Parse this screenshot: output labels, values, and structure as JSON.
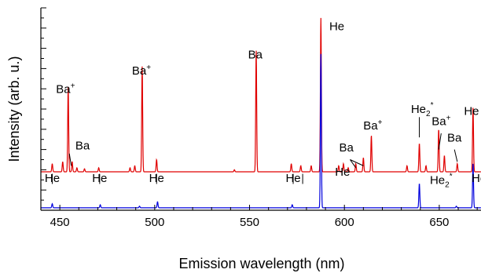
{
  "chart_data": {
    "type": "line",
    "xlabel": "Emission wavelength (nm)",
    "ylabel": "Intensity (arb. u.)",
    "xlim": [
      440,
      672
    ],
    "ylim": [
      0,
      1.0
    ],
    "x_ticks": [
      450,
      500,
      550,
      600,
      650
    ],
    "y_ticks": "unlabeled",
    "grid": false,
    "series": [
      {
        "color": "#e00000",
        "baseline": 0.19,
        "peaks": [
          {
            "x": 446,
            "h": 0.04
          },
          {
            "x": 451.5,
            "h": 0.05
          },
          {
            "x": 454.4,
            "h": 0.42
          },
          {
            "x": 456.5,
            "h": 0.05
          },
          {
            "x": 459,
            "h": 0.02
          },
          {
            "x": 463,
            "h": 0.015
          },
          {
            "x": 470.5,
            "h": 0.02
          },
          {
            "x": 487,
            "h": 0.02
          },
          {
            "x": 489.5,
            "h": 0.03
          },
          {
            "x": 493.4,
            "h": 0.52
          },
          {
            "x": 501,
            "h": 0.06
          },
          {
            "x": 542,
            "h": 0.01
          },
          {
            "x": 553.5,
            "h": 0.6
          },
          {
            "x": 572,
            "h": 0.04
          },
          {
            "x": 577,
            "h": 0.03
          },
          {
            "x": 582.5,
            "h": 0.03
          },
          {
            "x": 587.6,
            "h": 0.76
          },
          {
            "x": 597,
            "h": 0.03
          },
          {
            "x": 599.5,
            "h": 0.04
          },
          {
            "x": 602,
            "h": 0.02
          },
          {
            "x": 606,
            "h": 0.04
          },
          {
            "x": 610,
            "h": 0.07
          },
          {
            "x": 614.2,
            "h": 0.18
          },
          {
            "x": 633,
            "h": 0.03
          },
          {
            "x": 639.5,
            "h": 0.14
          },
          {
            "x": 643,
            "h": 0.03
          },
          {
            "x": 649.7,
            "h": 0.21
          },
          {
            "x": 652.7,
            "h": 0.08
          },
          {
            "x": 659.5,
            "h": 0.04
          },
          {
            "x": 667.8,
            "h": 0.32
          }
        ]
      },
      {
        "color": "#0000dd",
        "baseline": 0.012,
        "peaks": [
          {
            "x": 446,
            "h": 0.02
          },
          {
            "x": 471.3,
            "h": 0.015
          },
          {
            "x": 492,
            "h": 0.008
          },
          {
            "x": 501.5,
            "h": 0.03
          },
          {
            "x": 572.5,
            "h": 0.015
          },
          {
            "x": 587.6,
            "h": 0.76
          },
          {
            "x": 639.5,
            "h": 0.12
          },
          {
            "x": 659,
            "h": 0.008
          },
          {
            "x": 667.8,
            "h": 0.22
          }
        ]
      }
    ],
    "annotations": [
      {
        "text": "Ba",
        "sup": "+",
        "x": 453,
        "y": 0.58
      },
      {
        "text": "Ba",
        "x": 462,
        "y": 0.3
      },
      {
        "text": "Ba",
        "sup": "+",
        "x": 493,
        "y": 0.67
      },
      {
        "text": "Ba",
        "x": 553,
        "y": 0.75
      },
      {
        "text": "He",
        "x": 596,
        "y": 0.89
      },
      {
        "text": "Ba",
        "sup": "+",
        "x": 615,
        "y": 0.4
      },
      {
        "text": "Ba",
        "x": 601,
        "y": 0.29
      },
      {
        "text": "He",
        "sub": "2",
        "sup": "*",
        "x": 641,
        "y": 0.48
      },
      {
        "text": "Ba",
        "sup": "+",
        "x": 651,
        "y": 0.42
      },
      {
        "text": "Ba",
        "x": 658,
        "y": 0.34
      },
      {
        "text": "He",
        "x": 667,
        "y": 0.47
      },
      {
        "text": "He",
        "x": 446,
        "y": 0.14
      },
      {
        "text": "He",
        "x": 471,
        "y": 0.14
      },
      {
        "text": "He",
        "x": 501,
        "y": 0.14
      },
      {
        "text": "He",
        "x": 573,
        "y": 0.14
      },
      {
        "text": "He",
        "x": 599,
        "y": 0.17
      },
      {
        "text": "He",
        "sub": "2",
        "sup": "*",
        "x": 651,
        "y": 0.13
      },
      {
        "text": "He",
        "x": 671,
        "y": 0.14
      }
    ]
  }
}
